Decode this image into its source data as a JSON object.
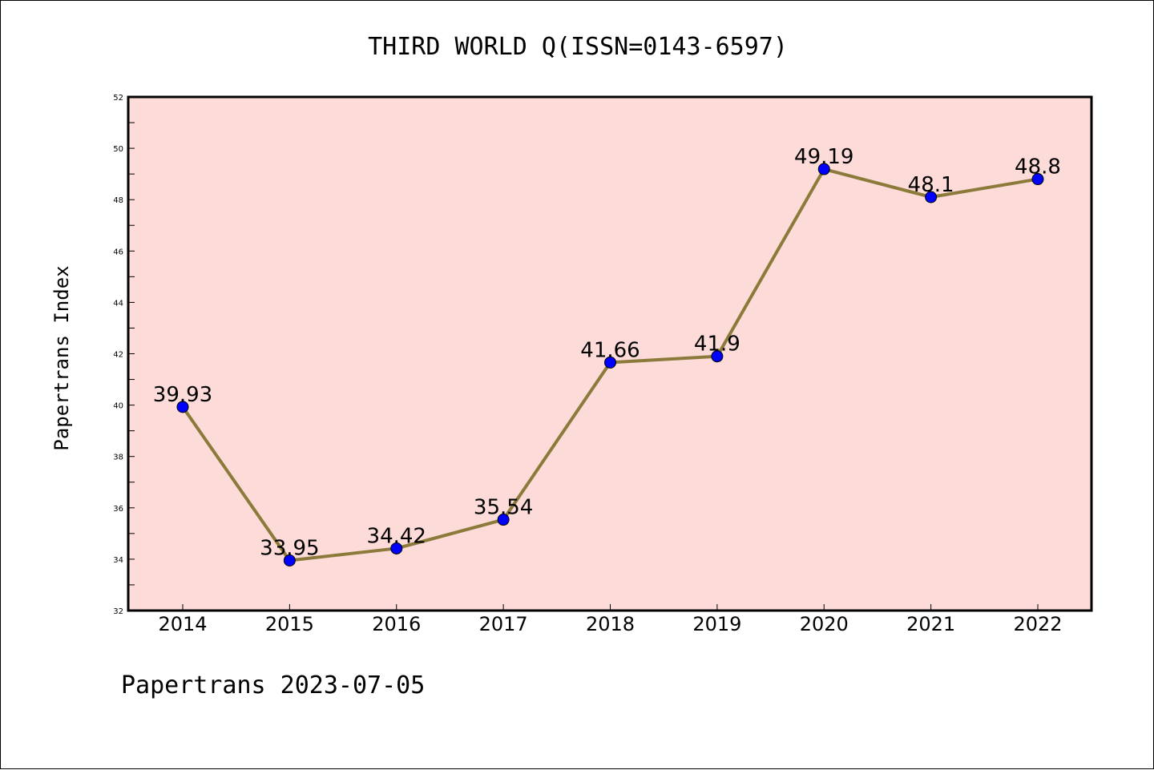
{
  "chart_data": {
    "type": "line",
    "title": "THIRD WORLD Q(ISSN=0143-6597)",
    "xlabel": "",
    "ylabel": "Papertrans Index",
    "footer": "Papertrans 2023-07-05",
    "categories": [
      "2014",
      "2015",
      "2016",
      "2017",
      "2018",
      "2019",
      "2020",
      "2021",
      "2022"
    ],
    "values": [
      39.93,
      33.95,
      34.42,
      35.54,
      41.66,
      41.9,
      49.19,
      48.1,
      48.8
    ],
    "data_labels": [
      "39.93",
      "33.95",
      "34.42",
      "35.54",
      "41.66",
      "41.9",
      "49.19",
      "48.1",
      "48.8"
    ],
    "ylim": [
      32,
      52
    ],
    "yticks": [
      32,
      34,
      36,
      38,
      40,
      42,
      44,
      46,
      48,
      50,
      52
    ],
    "grid": false,
    "legend": "none",
    "colors": {
      "plot_background": "#fddbd8",
      "line": "#8b7a3a",
      "marker": "#0000ff",
      "axes": "#000000"
    }
  }
}
